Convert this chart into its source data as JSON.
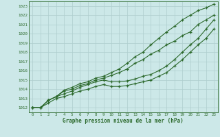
{
  "x": [
    0,
    1,
    2,
    3,
    4,
    5,
    6,
    7,
    8,
    9,
    10,
    11,
    12,
    13,
    14,
    15,
    16,
    17,
    18,
    19,
    20,
    21,
    22,
    23
  ],
  "line_top": [
    1012,
    1012,
    1012.8,
    1013.2,
    1013.9,
    1014.2,
    1014.6,
    1014.8,
    1015.2,
    1015.4,
    1015.8,
    1016.2,
    1016.8,
    1017.5,
    1018.0,
    1018.8,
    1019.5,
    1020.2,
    1020.8,
    1021.5,
    1022.0,
    1022.5,
    1022.8,
    1023.2
  ],
  "line_mid_high": [
    1012,
    1012,
    1012.8,
    1013.2,
    1013.8,
    1014.0,
    1014.4,
    1014.6,
    1015.0,
    1015.2,
    1015.5,
    1015.8,
    1016.2,
    1016.8,
    1017.2,
    1017.8,
    1018.2,
    1018.8,
    1019.2,
    1019.8,
    1020.2,
    1021.0,
    1021.5,
    1022.0
  ],
  "line_mid_low": [
    1012,
    1012,
    1012.8,
    1013.2,
    1013.5,
    1013.8,
    1014.2,
    1014.5,
    1014.8,
    1015.0,
    1014.8,
    1014.8,
    1014.9,
    1015.1,
    1015.4,
    1015.6,
    1016.0,
    1016.5,
    1017.2,
    1018.0,
    1018.8,
    1019.5,
    1020.5,
    1021.5
  ],
  "line_low": [
    1012,
    1012,
    1012.5,
    1013.0,
    1013.2,
    1013.5,
    1013.8,
    1014.0,
    1014.3,
    1014.5,
    1014.3,
    1014.3,
    1014.4,
    1014.6,
    1014.8,
    1015.0,
    1015.4,
    1015.8,
    1016.5,
    1017.2,
    1018.0,
    1018.8,
    1019.5,
    1020.5
  ],
  "ylim": [
    1011.5,
    1023.5
  ],
  "xlim": [
    -0.5,
    23.5
  ],
  "yticks": [
    1012,
    1013,
    1014,
    1015,
    1016,
    1017,
    1018,
    1019,
    1020,
    1021,
    1022,
    1023
  ],
  "xticks": [
    0,
    1,
    2,
    3,
    4,
    5,
    6,
    7,
    8,
    9,
    10,
    11,
    12,
    13,
    14,
    15,
    16,
    17,
    18,
    19,
    20,
    21,
    22,
    23
  ],
  "xlabel": "Graphe pression niveau de la mer (hPa)",
  "line_color": "#2d6a2d",
  "bg_color": "#cce8e8",
  "grid_color": "#aecece",
  "marker": "+",
  "marker_size": 3.5,
  "linewidth": 0.8,
  "tick_fontsize": 4.2,
  "xlabel_fontsize": 5.5
}
